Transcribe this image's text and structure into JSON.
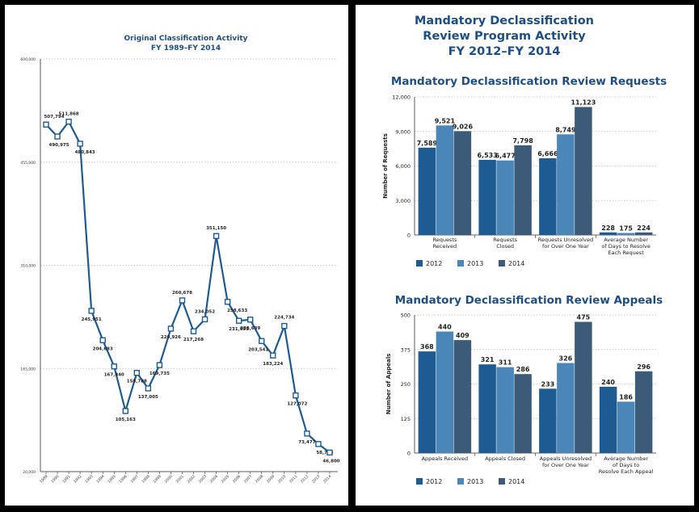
{
  "chart_data": [
    {
      "type": "line",
      "title": "Original Classification Activity",
      "subtitle": "FY 1989–FY 2014",
      "x": [
        "1989",
        "1990",
        "1991",
        "1992",
        "1993",
        "1994",
        "1995",
        "1996",
        "1997",
        "1998",
        "1999",
        "2000",
        "2001",
        "2002",
        "2003",
        "2004",
        "2005",
        "2006",
        "2007",
        "2008",
        "2009",
        "2010",
        "2011",
        "2012",
        "2013",
        "2014"
      ],
      "values": [
        507794,
        490975,
        511868,
        480843,
        245951,
        204683,
        167840,
        105163,
        158788,
        137005,
        169735,
        220926,
        260678,
        217268,
        234052,
        351150,
        258633,
        231995,
        233639,
        203541,
        183224,
        224734,
        127072,
        73477,
        58794,
        46800
      ],
      "labels": [
        "507,794",
        "490,975",
        "511,868",
        "480,843",
        "245,951",
        "204,683",
        "167,840",
        "105,163",
        "158,788",
        "137,005",
        "169,735",
        "220,926",
        "260,678",
        "217,268",
        "234,052",
        "351,150",
        "258,633",
        "231,995",
        "233,639",
        "203,541",
        "183,224",
        "224,734",
        "127,072",
        "73,477",
        "58,794",
        "46,800"
      ],
      "yticks": [
        "20,000",
        "165,000",
        "310,000",
        "455,000",
        "600,000"
      ],
      "ylim": [
        20000,
        600000
      ],
      "color": "#1f5b93"
    },
    {
      "type": "bar",
      "heading": [
        "Mandatory Declassification",
        "Review Program Activity",
        "FY 2012–FY 2014"
      ],
      "title": "Mandatory Declassification Review Requests",
      "ylabel": "Number of Requests",
      "ylim": [
        0,
        12000
      ],
      "yticks": [
        "0",
        "3,000",
        "6,000",
        "9,000",
        "12,000"
      ],
      "categories": [
        [
          "Requests",
          "Received"
        ],
        [
          "Requests",
          "Closed"
        ],
        [
          "Requests Unresolved",
          "for Over One Year"
        ],
        [
          "Average Number",
          "of Days to Resolve",
          "Each Request"
        ]
      ],
      "series": [
        {
          "name": "2012",
          "color": "#1f5b93",
          "values": [
            7589,
            6533,
            6666,
            228
          ],
          "labels": [
            "7,589",
            "6,533",
            "6,666",
            "228"
          ]
        },
        {
          "name": "2013",
          "color": "#4a86b8",
          "values": [
            9521,
            6477,
            8749,
            175
          ],
          "labels": [
            "9,521",
            "6,477",
            "8,749",
            "175"
          ]
        },
        {
          "name": "2014",
          "color": "#3c5b78",
          "values": [
            9026,
            7798,
            11123,
            224
          ],
          "labels": [
            "9,026",
            "7,798",
            "11,123",
            "224"
          ]
        }
      ]
    },
    {
      "type": "bar",
      "title": "Mandatory Declassification Review Appeals",
      "ylabel": "Number of Appeals",
      "ylim": [
        0,
        500
      ],
      "yticks": [
        "0",
        "125",
        "250",
        "375",
        "500"
      ],
      "categories": [
        [
          "Appeals Received"
        ],
        [
          "Appeals Closed"
        ],
        [
          "Appeals Unresolved",
          "for Over One Year"
        ],
        [
          "Average Number",
          "of Days to",
          "Resolve Each Appeal"
        ]
      ],
      "series": [
        {
          "name": "2012",
          "color": "#1f5b93",
          "values": [
            368,
            321,
            233,
            240
          ],
          "labels": [
            "368",
            "321",
            "233",
            "240"
          ]
        },
        {
          "name": "2013",
          "color": "#4a86b8",
          "values": [
            440,
            311,
            326,
            186
          ],
          "labels": [
            "440",
            "311",
            "326",
            "186"
          ]
        },
        {
          "name": "2014",
          "color": "#3c5b78",
          "values": [
            409,
            286,
            475,
            296
          ],
          "labels": [
            "409",
            "286",
            "475",
            "296"
          ]
        }
      ]
    }
  ]
}
